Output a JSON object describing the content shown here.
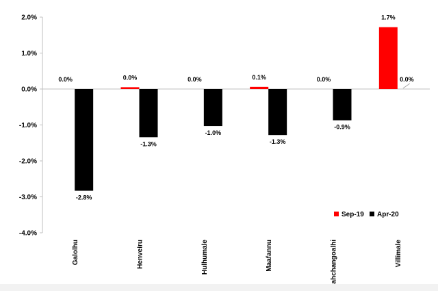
{
  "chart_data": {
    "type": "bar",
    "categories": [
      "Galolhu",
      "Henveiru",
      "Hulhumale",
      "Maafannu",
      "Mahchangoalhi",
      "Villimale"
    ],
    "series": [
      {
        "name": "Sep-19",
        "values": [
          0.0,
          0.05,
          0.0,
          0.06,
          0.0,
          1.72
        ],
        "labels": [
          "0.0%",
          "0.0%",
          "0.0%",
          "0.1%",
          "0.0%",
          "1.7%"
        ]
      },
      {
        "name": "Apr-20",
        "values": [
          -2.83,
          -1.34,
          -1.03,
          -1.28,
          -0.87,
          0.0
        ],
        "labels": [
          "-2.8%",
          "-1.3%",
          "-1.0%",
          "-1.3%",
          "-0.9%",
          "0.0%"
        ]
      }
    ],
    "yticks": [
      2.0,
      1.0,
      0.0,
      -1.0,
      -2.0,
      -3.0,
      -4.0
    ],
    "ytick_labels": [
      "2.0%",
      "1.0%",
      "0.0%",
      "-1.0%",
      "-2.0%",
      "-3.0%",
      "-4.0%"
    ],
    "ylim": [
      -4.0,
      2.0
    ],
    "legend_position": "bottom-right",
    "colors": {
      "Sep-19": "#ff0000",
      "Apr-20": "#000000",
      "axis": "#bfbfbf",
      "leader": "#a6a6a6"
    }
  }
}
